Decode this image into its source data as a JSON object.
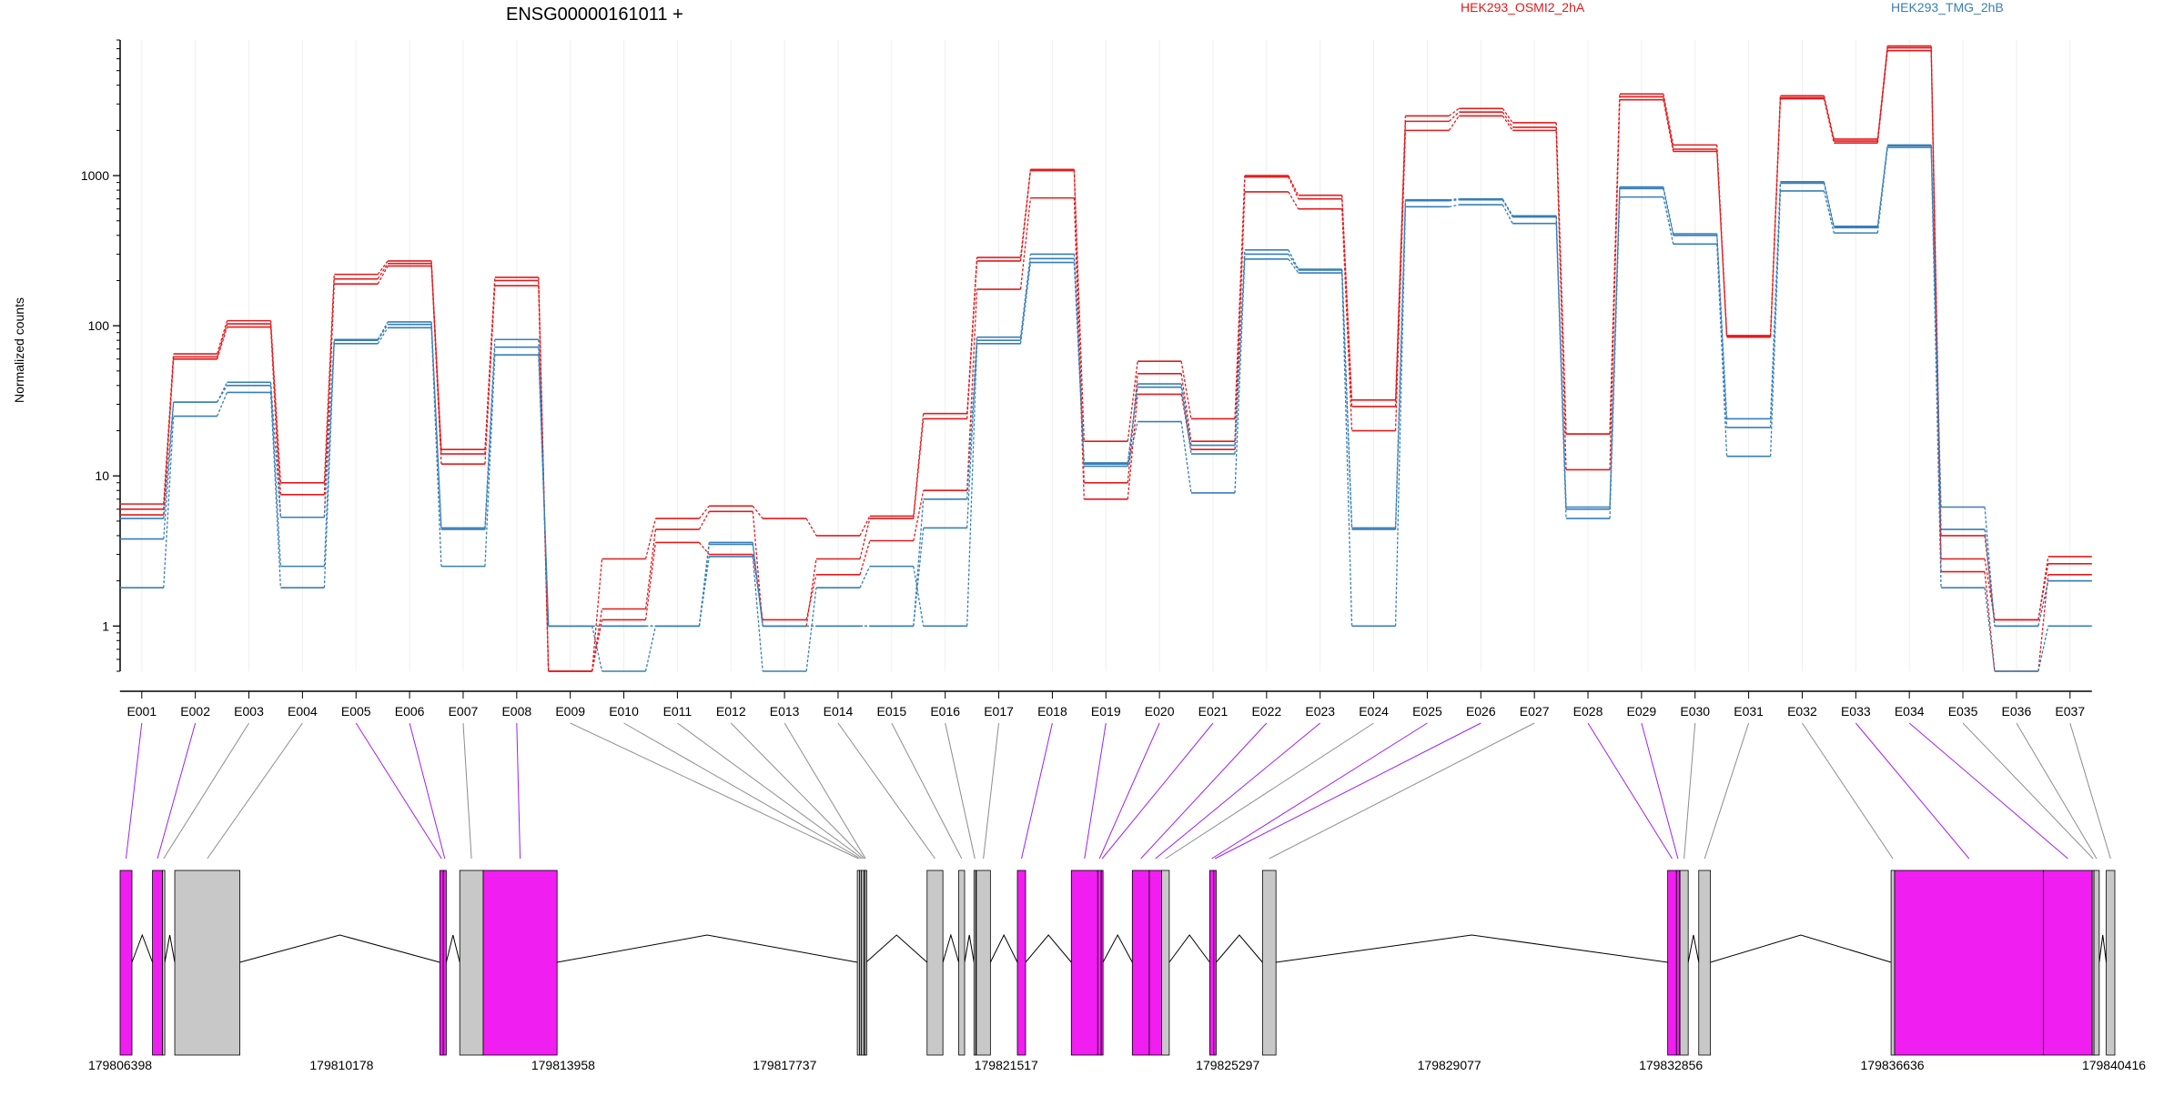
{
  "chart_data": {
    "type": "line",
    "title": "ENSG00000161011 +",
    "ylabel": "Normalized counts",
    "yscale": "log",
    "ylim": [
      0.5,
      8000
    ],
    "yticks": [
      "1",
      "10",
      "100",
      "1000"
    ],
    "grid": true,
    "legend_position": "top",
    "categories": [
      "E001",
      "E002",
      "E003",
      "E004",
      "E005",
      "E006",
      "E007",
      "E008",
      "E009",
      "E010",
      "E011",
      "E012",
      "E013",
      "E014",
      "E015",
      "E016",
      "E017",
      "E018",
      "E019",
      "E020",
      "E021",
      "E022",
      "E023",
      "E024",
      "E025",
      "E026",
      "E027",
      "E028",
      "E029",
      "E030",
      "E031",
      "E032",
      "E033",
      "E034",
      "E035",
      "E036",
      "E037"
    ],
    "series": [
      {
        "name": "HEK293_OSMI2_2hA",
        "color": "#e31a1c",
        "values": [
          6.5,
          65,
          108,
          9,
          220,
          270,
          15,
          210,
          0.5,
          2.8,
          5.2,
          6.3,
          5.2,
          4,
          5.4,
          26,
          285,
          1100,
          17,
          58,
          24,
          1000,
          740,
          32,
          2500,
          2800,
          2250,
          19,
          3500,
          1600,
          86,
          3400,
          1750,
          7300,
          4,
          1.1,
          2.9
        ]
      },
      {
        "name": "HEK293_OSMI2_2hA",
        "color": "#e31a1c",
        "values": [
          6,
          62,
          103,
          7.5,
          205,
          260,
          14,
          200,
          0.5,
          1.3,
          4.4,
          5.8,
          1,
          2.8,
          5.2,
          24,
          270,
          1080,
          9,
          48,
          17,
          980,
          700,
          29,
          2300,
          2650,
          2100,
          19,
          3350,
          1500,
          85,
          3300,
          1700,
          7100,
          2.8,
          1.1,
          2.6
        ]
      },
      {
        "name": "HEK293_OSMI2_2hA",
        "color": "#e31a1c",
        "values": [
          5.5,
          60,
          98,
          5.3,
          190,
          250,
          12,
          185,
          0.5,
          1.1,
          3.6,
          3,
          1.1,
          2.2,
          3.7,
          8,
          175,
          710,
          7,
          35,
          15,
          780,
          600,
          20,
          2000,
          2500,
          2000,
          11,
          3200,
          1450,
          84,
          3250,
          1650,
          6800,
          2.3,
          0.5,
          2.2
        ]
      },
      {
        "name": "HEK293_TMG_2hB",
        "color": "#377eb8",
        "values": [
          5.2,
          31,
          42,
          5.3,
          81,
          106,
          4.5,
          81,
          1,
          1,
          1,
          3.6,
          1,
          1,
          1,
          7,
          84,
          300,
          12.2,
          41,
          16,
          320,
          238,
          4.5,
          690,
          700,
          540,
          6.2,
          840,
          410,
          24,
          910,
          460,
          1600,
          6.2,
          1,
          2
        ]
      },
      {
        "name": "HEK293_TMG_2hB",
        "color": "#377eb8",
        "values": [
          3.8,
          31,
          40,
          2.5,
          80,
          102,
          4.4,
          72,
          1,
          1,
          1,
          3.5,
          1,
          1,
          1,
          4.5,
          80,
          280,
          12,
          39,
          14,
          300,
          235,
          4.4,
          680,
          690,
          530,
          6,
          820,
          400,
          21,
          890,
          450,
          1580,
          4.4,
          1,
          2
        ]
      },
      {
        "name": "HEK293_TMG_2hB",
        "color": "#377eb8",
        "values": [
          1.8,
          25,
          36,
          1.8,
          76,
          97,
          2.5,
          64,
          1,
          0.5,
          1,
          2.9,
          0.5,
          1.8,
          2.5,
          1,
          76,
          264,
          11.6,
          23,
          7.7,
          278,
          225,
          1,
          620,
          640,
          480,
          5.2,
          720,
          350,
          13.5,
          790,
          415,
          1540,
          1.8,
          0.5,
          1
        ]
      }
    ],
    "genomic_ticks": [
      "179806398",
      "179810178",
      "179813958",
      "179817737",
      "179821517",
      "179825297",
      "179829077",
      "179832856",
      "179836636",
      "179840416"
    ],
    "genomic_range": [
      179806398,
      179840416
    ],
    "exons": [
      {
        "id": "E001",
        "start": 179806398,
        "end": 179806600,
        "highlighted": true
      },
      {
        "id": "E002",
        "start": 179806950,
        "end": 179807120,
        "highlighted": true
      },
      {
        "id": "E003",
        "start": 179807120,
        "end": 179807160,
        "highlighted": false
      },
      {
        "id": "E004",
        "start": 179807330,
        "end": 179808440,
        "highlighted": false
      },
      {
        "id": "E005",
        "start": 179811850,
        "end": 179811910,
        "highlighted": true
      },
      {
        "id": "E006",
        "start": 179811910,
        "end": 179811960,
        "highlighted": true
      },
      {
        "id": "E007",
        "start": 179812190,
        "end": 179812590,
        "highlighted": false
      },
      {
        "id": "E008",
        "start": 179812590,
        "end": 179813850,
        "highlighted": true
      },
      {
        "id": "E009",
        "start": 179818970,
        "end": 179819010,
        "highlighted": false
      },
      {
        "id": "E010",
        "start": 179819010,
        "end": 179819040,
        "highlighted": false
      },
      {
        "id": "E011",
        "start": 179819040,
        "end": 179819080,
        "highlighted": false
      },
      {
        "id": "E012",
        "start": 179819080,
        "end": 179819100,
        "highlighted": false
      },
      {
        "id": "E013",
        "start": 179819100,
        "end": 179819120,
        "highlighted": false
      },
      {
        "id": "E014",
        "start": 179820160,
        "end": 179820430,
        "highlighted": false
      },
      {
        "id": "E015",
        "start": 179820700,
        "end": 179820800,
        "highlighted": false
      },
      {
        "id": "E016",
        "start": 179820960,
        "end": 179820990,
        "highlighted": false
      },
      {
        "id": "E017",
        "start": 179821000,
        "end": 179821240,
        "highlighted": false
      },
      {
        "id": "E018",
        "start": 179821700,
        "end": 179821840,
        "highlighted": true
      },
      {
        "id": "E019",
        "start": 179822620,
        "end": 179823070,
        "highlighted": true
      },
      {
        "id": "E020",
        "start": 179823070,
        "end": 179823130,
        "highlighted": true
      },
      {
        "id": "E021",
        "start": 179823130,
        "end": 179823160,
        "highlighted": true
      },
      {
        "id": "E022",
        "start": 179823660,
        "end": 179823950,
        "highlighted": true
      },
      {
        "id": "E023",
        "start": 179823950,
        "end": 179824160,
        "highlighted": true
      },
      {
        "id": "E024",
        "start": 179824160,
        "end": 179824290,
        "highlighted": false
      },
      {
        "id": "E025",
        "start": 179824980,
        "end": 179825050,
        "highlighted": true
      },
      {
        "id": "E026",
        "start": 179825050,
        "end": 179825090,
        "highlighted": true
      },
      {
        "id": "E027",
        "start": 179825880,
        "end": 179826110,
        "highlighted": false
      },
      {
        "id": "E028",
        "start": 179832790,
        "end": 179832940,
        "highlighted": true
      },
      {
        "id": "E029",
        "start": 179832940,
        "end": 179832990,
        "highlighted": true
      },
      {
        "id": "E030",
        "start": 179833000,
        "end": 179833140,
        "highlighted": false
      },
      {
        "id": "E031",
        "start": 179833320,
        "end": 179833520,
        "highlighted": false
      },
      {
        "id": "E032",
        "start": 179836600,
        "end": 179836660,
        "highlighted": false
      },
      {
        "id": "E033",
        "start": 179836660,
        "end": 179839200,
        "highlighted": true
      },
      {
        "id": "E034",
        "start": 179839200,
        "end": 179840030,
        "highlighted": true
      },
      {
        "id": "E035",
        "start": 179840030,
        "end": 179840060,
        "highlighted": false
      },
      {
        "id": "E036",
        "start": 179840060,
        "end": 179840150,
        "highlighted": false
      },
      {
        "id": "E037",
        "start": 179840270,
        "end": 179840416,
        "highlighted": false
      }
    ],
    "colors": {
      "highlight_exon": "#f01ef0",
      "other_exon": "#c8c8c8",
      "link_highlight": "#a020f0",
      "link_other": "#8c8c8c"
    }
  }
}
